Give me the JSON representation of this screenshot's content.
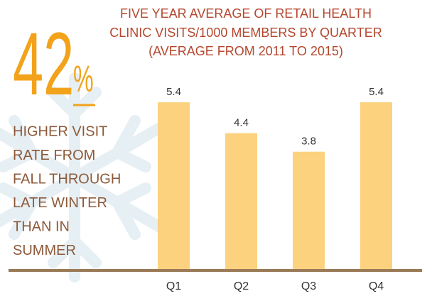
{
  "chart_data": {
    "type": "bar",
    "title_lines": [
      "FIVE YEAR AVERAGE OF RETAIL HEALTH",
      "CLINIC VISITS/1000 MEMBERS BY QUARTER",
      "(AVERAGE FROM 2011 TO 2015)"
    ],
    "stat": "42",
    "stat_unit": "%",
    "note_lines": [
      "HIGHER VISIT",
      "RATE FROM",
      "FALL THROUGH",
      "LATE WINTER",
      "THAN IN",
      "SUMMER"
    ],
    "categories": [
      "Q1",
      "Q2",
      "Q3",
      "Q4"
    ],
    "values": [
      5.4,
      4.4,
      3.8,
      5.4
    ],
    "color": "#fcd27e"
  }
}
